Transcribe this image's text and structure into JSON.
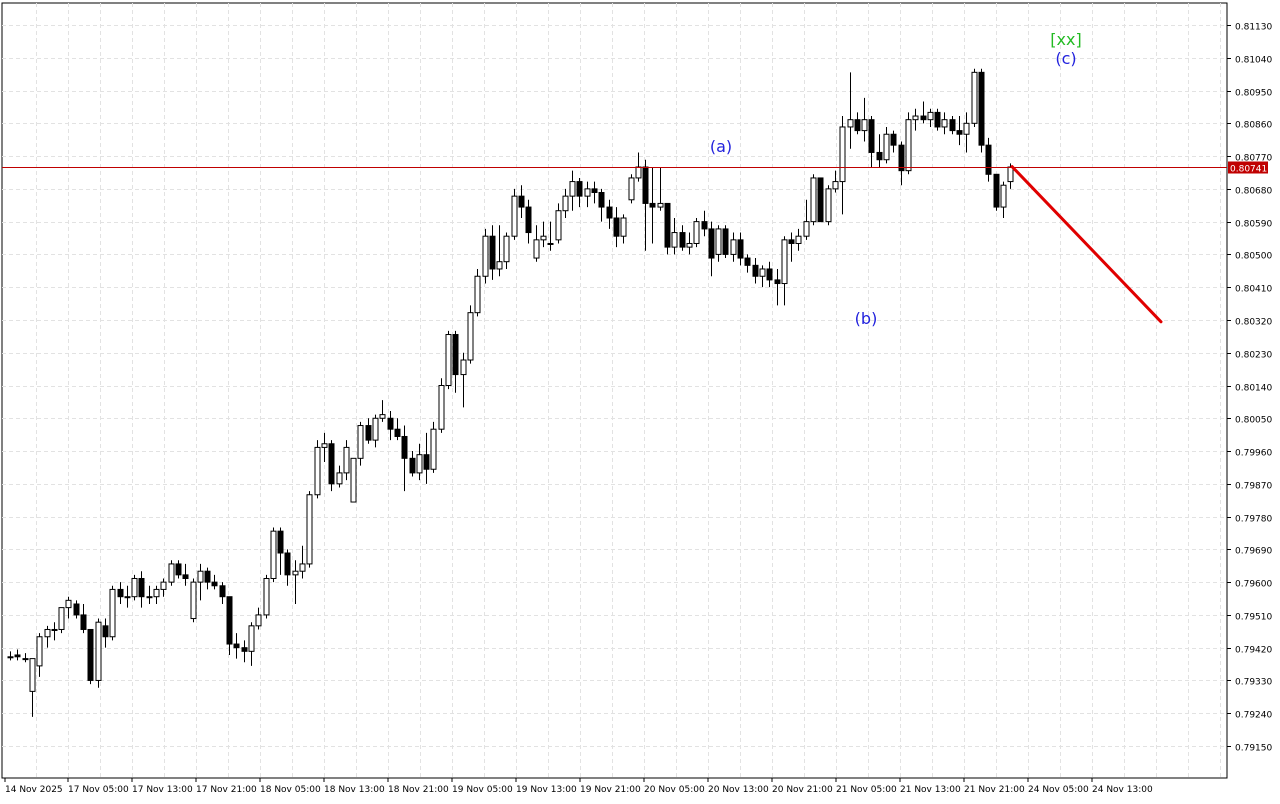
{
  "chart_data": {
    "type": "candlestick",
    "price_axis": {
      "ticks": [
        "0.81130",
        "0.81040",
        "0.80950",
        "0.80860",
        "0.80770",
        "0.80680",
        "0.80590",
        "0.80500",
        "0.80410",
        "0.80320",
        "0.80230",
        "0.80140",
        "0.80050",
        "0.79960",
        "0.79870",
        "0.79780",
        "0.79690",
        "0.79600",
        "0.79510",
        "0.79420",
        "0.79330",
        "0.79240",
        "0.79150"
      ],
      "range": [
        0.79065,
        0.81195
      ]
    },
    "time_axis": {
      "labels": [
        "14 Nov 2025",
        "17 Nov 05:00",
        "17 Nov 13:00",
        "17 Nov 21:00",
        "18 Nov 05:00",
        "18 Nov 13:00",
        "18 Nov 21:00",
        "19 Nov 05:00",
        "19 Nov 13:00",
        "19 Nov 21:00",
        "20 Nov 05:00",
        "20 Nov 13:00",
        "20 Nov 21:00",
        "21 Nov 05:00",
        "21 Nov 13:00",
        "21 Nov 21:00",
        "24 Nov 05:00",
        "24 Nov 13:00"
      ]
    },
    "grid": true,
    "current_price": {
      "value": 0.80741,
      "label": "0.80741",
      "color": "#c00000"
    },
    "forecast_arrow": {
      "color": "#e00000",
      "from": 0.80741,
      "to": 0.80315
    },
    "wave_labels": [
      {
        "text": "(a)",
        "color": "#2222dd",
        "price": 0.8076,
        "position": "above"
      },
      {
        "text": "(b)",
        "color": "#2222dd",
        "price": 0.8036,
        "position": "below"
      },
      {
        "text": "(c)",
        "color": "#2222dd",
        "price": 0.8101,
        "position": "above"
      },
      {
        "text": "[xx]",
        "color": "#22bb22",
        "price": 0.8101,
        "position": "above2"
      }
    ],
    "candles": [
      [
        0.79395,
        0.7941,
        0.79385,
        0.79395
      ],
      [
        0.794,
        0.79415,
        0.79385,
        0.79395
      ],
      [
        0.7939,
        0.79405,
        0.7938,
        0.7939
      ],
      [
        0.793,
        0.7939,
        0.7923,
        0.7939
      ],
      [
        0.7937,
        0.7946,
        0.7934,
        0.7945
      ],
      [
        0.7945,
        0.7948,
        0.7942,
        0.7947
      ],
      [
        0.7947,
        0.7949,
        0.7944,
        0.7947
      ],
      [
        0.7947,
        0.7953,
        0.7946,
        0.7953
      ],
      [
        0.7953,
        0.7956,
        0.795,
        0.7955
      ],
      [
        0.7954,
        0.7955,
        0.795,
        0.7951
      ],
      [
        0.7951,
        0.7954,
        0.7946,
        0.7947
      ],
      [
        0.7947,
        0.7947,
        0.7932,
        0.7933
      ],
      [
        0.7933,
        0.795,
        0.7931,
        0.7949
      ],
      [
        0.7948,
        0.795,
        0.7942,
        0.7945
      ],
      [
        0.7945,
        0.7959,
        0.7944,
        0.7958
      ],
      [
        0.7958,
        0.796,
        0.7954,
        0.7956
      ],
      [
        0.7956,
        0.7959,
        0.7953,
        0.7956
      ],
      [
        0.7956,
        0.7962,
        0.7955,
        0.7961
      ],
      [
        0.7961,
        0.7963,
        0.7953,
        0.7956
      ],
      [
        0.7956,
        0.7959,
        0.7954,
        0.7956
      ],
      [
        0.7956,
        0.7959,
        0.7954,
        0.7958
      ],
      [
        0.7958,
        0.7961,
        0.7956,
        0.796
      ],
      [
        0.796,
        0.7966,
        0.7959,
        0.7965
      ],
      [
        0.7965,
        0.7966,
        0.7961,
        0.7962
      ],
      [
        0.7962,
        0.7965,
        0.7959,
        0.7961
      ],
      [
        0.795,
        0.7961,
        0.7949,
        0.796
      ],
      [
        0.796,
        0.7965,
        0.7955,
        0.7963
      ],
      [
        0.7963,
        0.7964,
        0.7958,
        0.796
      ],
      [
        0.796,
        0.7962,
        0.7958,
        0.7959
      ],
      [
        0.7959,
        0.796,
        0.7954,
        0.7956
      ],
      [
        0.7956,
        0.7956,
        0.794,
        0.7943
      ],
      [
        0.7943,
        0.7946,
        0.7939,
        0.7942
      ],
      [
        0.7942,
        0.7944,
        0.7938,
        0.7941
      ],
      [
        0.7941,
        0.7949,
        0.7937,
        0.7948
      ],
      [
        0.7948,
        0.7953,
        0.7947,
        0.7951
      ],
      [
        0.7951,
        0.7962,
        0.795,
        0.7961
      ],
      [
        0.7961,
        0.7975,
        0.796,
        0.7974
      ],
      [
        0.7974,
        0.7975,
        0.7962,
        0.7968
      ],
      [
        0.7968,
        0.7969,
        0.7959,
        0.7962
      ],
      [
        0.7962,
        0.7966,
        0.7954,
        0.7963
      ],
      [
        0.7963,
        0.797,
        0.7961,
        0.7965
      ],
      [
        0.7965,
        0.7985,
        0.7964,
        0.7984
      ],
      [
        0.7984,
        0.7999,
        0.7983,
        0.7997
      ],
      [
        0.7997,
        0.8001,
        0.7993,
        0.7998
      ],
      [
        0.7998,
        0.7999,
        0.7985,
        0.7987
      ],
      [
        0.7987,
        0.7992,
        0.7986,
        0.799
      ],
      [
        0.799,
        0.7999,
        0.7988,
        0.7997
      ],
      [
        0.7982,
        0.7994,
        0.7982,
        0.7994
      ],
      [
        0.7994,
        0.8004,
        0.7992,
        0.8003
      ],
      [
        0.8003,
        0.8005,
        0.7998,
        0.7999
      ],
      [
        0.7999,
        0.8006,
        0.7997,
        0.8005
      ],
      [
        0.8005,
        0.801,
        0.8004,
        0.8006
      ],
      [
        0.8005,
        0.8007,
        0.7999,
        0.8002
      ],
      [
        0.8002,
        0.8005,
        0.7999,
        0.8
      ],
      [
        0.8,
        0.8003,
        0.7985,
        0.7994
      ],
      [
        0.7994,
        0.7996,
        0.7989,
        0.799
      ],
      [
        0.799,
        0.7998,
        0.7988,
        0.7995
      ],
      [
        0.7995,
        0.8001,
        0.7987,
        0.7991
      ],
      [
        0.7991,
        0.8004,
        0.799,
        0.8002
      ],
      [
        0.8002,
        0.8016,
        0.8001,
        0.8014
      ],
      [
        0.8014,
        0.8029,
        0.8013,
        0.8028
      ],
      [
        0.8028,
        0.8029,
        0.8012,
        0.8017
      ],
      [
        0.8017,
        0.8023,
        0.8008,
        0.8021
      ],
      [
        0.8021,
        0.8036,
        0.802,
        0.8034
      ],
      [
        0.8034,
        0.8046,
        0.8033,
        0.8044
      ],
      [
        0.8044,
        0.8057,
        0.8042,
        0.8055
      ],
      [
        0.8055,
        0.8058,
        0.8043,
        0.8046
      ],
      [
        0.8046,
        0.8058,
        0.8044,
        0.8048
      ],
      [
        0.8048,
        0.8056,
        0.8046,
        0.8055
      ],
      [
        0.8055,
        0.8068,
        0.8054,
        0.8066
      ],
      [
        0.8066,
        0.8069,
        0.806,
        0.8063
      ],
      [
        0.8063,
        0.8065,
        0.8053,
        0.8056
      ],
      [
        0.8049,
        0.8058,
        0.8048,
        0.8054
      ],
      [
        0.8054,
        0.8059,
        0.8052,
        0.8055
      ],
      [
        0.8053,
        0.8059,
        0.8051,
        0.8053
      ],
      [
        0.8054,
        0.8064,
        0.8053,
        0.8062
      ],
      [
        0.8062,
        0.8068,
        0.806,
        0.8066
      ],
      [
        0.8066,
        0.8073,
        0.8062,
        0.807
      ],
      [
        0.807,
        0.8071,
        0.8063,
        0.8066
      ],
      [
        0.8066,
        0.807,
        0.8063,
        0.8068
      ],
      [
        0.8068,
        0.807,
        0.8064,
        0.8067
      ],
      [
        0.8067,
        0.8068,
        0.8059,
        0.8063
      ],
      [
        0.8063,
        0.8065,
        0.8057,
        0.806
      ],
      [
        0.806,
        0.8063,
        0.8052,
        0.8055
      ],
      [
        0.8055,
        0.8061,
        0.8053,
        0.806
      ],
      [
        0.8065,
        0.8072,
        0.8064,
        0.8071
      ],
      [
        0.8071,
        0.8078,
        0.807,
        0.8074
      ],
      [
        0.8074,
        0.8076,
        0.8051,
        0.8064
      ],
      [
        0.8064,
        0.8074,
        0.8053,
        0.8063
      ],
      [
        0.8063,
        0.8074,
        0.8062,
        0.8064
      ],
      [
        0.8064,
        0.8064,
        0.805,
        0.8052
      ],
      [
        0.8052,
        0.806,
        0.805,
        0.8056
      ],
      [
        0.8056,
        0.8058,
        0.8051,
        0.8052
      ],
      [
        0.8052,
        0.8056,
        0.805,
        0.8053
      ],
      [
        0.8053,
        0.806,
        0.8052,
        0.8059
      ],
      [
        0.8059,
        0.8062,
        0.8055,
        0.8057
      ],
      [
        0.8057,
        0.8059,
        0.8044,
        0.8049
      ],
      [
        0.805,
        0.8058,
        0.8048,
        0.8057
      ],
      [
        0.8057,
        0.8058,
        0.8049,
        0.805
      ],
      [
        0.805,
        0.8056,
        0.8048,
        0.8054
      ],
      [
        0.8054,
        0.8056,
        0.8047,
        0.8049
      ],
      [
        0.8049,
        0.805,
        0.8045,
        0.8047
      ],
      [
        0.8047,
        0.8049,
        0.8042,
        0.8044
      ],
      [
        0.8044,
        0.8047,
        0.8041,
        0.8046
      ],
      [
        0.8046,
        0.8048,
        0.8041,
        0.8043
      ],
      [
        0.8043,
        0.8046,
        0.8036,
        0.8042
      ],
      [
        0.8042,
        0.8055,
        0.8036,
        0.8054
      ],
      [
        0.8054,
        0.8056,
        0.8048,
        0.8053
      ],
      [
        0.8053,
        0.8057,
        0.8051,
        0.8055
      ],
      [
        0.8055,
        0.8065,
        0.8054,
        0.8059
      ],
      [
        0.8059,
        0.8072,
        0.8058,
        0.8071
      ],
      [
        0.8071,
        0.8071,
        0.8059,
        0.8059
      ],
      [
        0.8059,
        0.8069,
        0.8058,
        0.8068
      ],
      [
        0.8068,
        0.8073,
        0.8067,
        0.807
      ],
      [
        0.807,
        0.8088,
        0.8061,
        0.8085
      ],
      [
        0.8085,
        0.81,
        0.8079,
        0.8087
      ],
      [
        0.8087,
        0.8089,
        0.8083,
        0.8084
      ],
      [
        0.8084,
        0.8093,
        0.8081,
        0.8087
      ],
      [
        0.8087,
        0.8088,
        0.8074,
        0.8078
      ],
      [
        0.8078,
        0.8083,
        0.8074,
        0.8076
      ],
      [
        0.8076,
        0.8085,
        0.8075,
        0.8083
      ],
      [
        0.8083,
        0.8084,
        0.8078,
        0.808
      ],
      [
        0.808,
        0.8081,
        0.8069,
        0.8073
      ],
      [
        0.8073,
        0.8089,
        0.8072,
        0.8087
      ],
      [
        0.8087,
        0.809,
        0.8084,
        0.8088
      ],
      [
        0.8088,
        0.8092,
        0.8086,
        0.8087
      ],
      [
        0.8087,
        0.809,
        0.8085,
        0.8089
      ],
      [
        0.8089,
        0.809,
        0.8084,
        0.8085
      ],
      [
        0.8085,
        0.8089,
        0.8083,
        0.8087
      ],
      [
        0.8087,
        0.8088,
        0.8083,
        0.8084
      ],
      [
        0.8084,
        0.8088,
        0.808,
        0.8083
      ],
      [
        0.8083,
        0.8089,
        0.8078,
        0.8086
      ],
      [
        0.8086,
        0.8101,
        0.8085,
        0.81
      ],
      [
        0.81,
        0.8101,
        0.8078,
        0.808
      ],
      [
        0.808,
        0.8082,
        0.807,
        0.8072
      ],
      [
        0.8072,
        0.8072,
        0.8062,
        0.8063
      ],
      [
        0.8063,
        0.807,
        0.806,
        0.8069
      ],
      [
        0.807,
        0.8075,
        0.8068,
        0.8074
      ]
    ]
  }
}
